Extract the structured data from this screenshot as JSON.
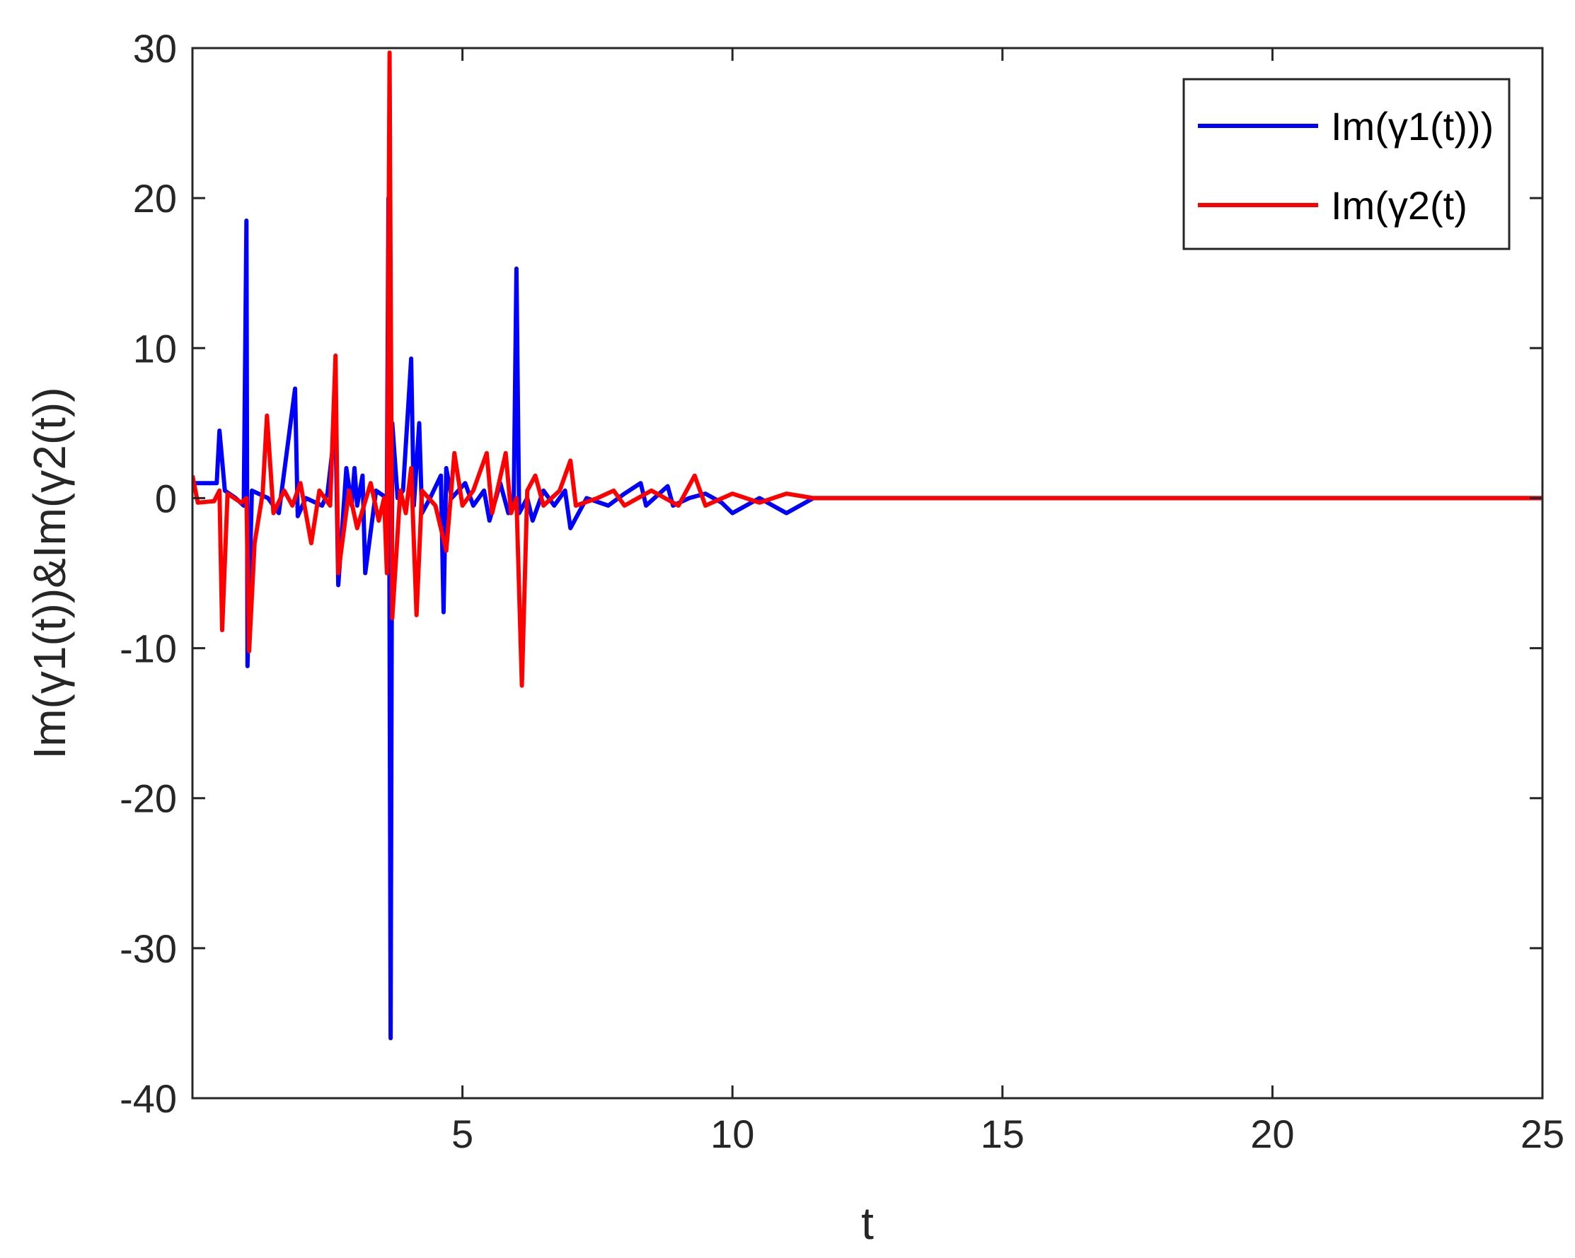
{
  "chart_data": {
    "type": "line",
    "xlabel": "t",
    "ylabel": "Im(γ1(t))&Im(γ2(t))",
    "xlim": [
      0,
      25
    ],
    "ylim": [
      -40,
      30
    ],
    "xticks": [
      5,
      10,
      15,
      20,
      25
    ],
    "yticks": [
      -40,
      -30,
      -20,
      -10,
      0,
      10,
      20,
      30
    ],
    "xtick_labels": [
      "5",
      "10",
      "15",
      "20",
      "25"
    ],
    "ytick_labels": [
      "-40",
      "-30",
      "-20",
      "-10",
      "0",
      "10",
      "20",
      "30"
    ],
    "grid": false,
    "legend_position": "top-right",
    "series": [
      {
        "name": "Im(γ1(t)))",
        "color": "#0000ff",
        "points": [
          [
            0.0,
            1.0
          ],
          [
            0.45,
            1.0
          ],
          [
            0.5,
            4.5
          ],
          [
            0.6,
            0.5
          ],
          [
            0.8,
            0.0
          ],
          [
            0.95,
            -0.5
          ],
          [
            1.0,
            18.5
          ],
          [
            1.02,
            -11.2
          ],
          [
            1.1,
            0.5
          ],
          [
            1.4,
            0.0
          ],
          [
            1.6,
            -1.0
          ],
          [
            1.9,
            7.3
          ],
          [
            1.95,
            -1.2
          ],
          [
            2.1,
            0.0
          ],
          [
            2.4,
            -0.5
          ],
          [
            2.5,
            0.3
          ],
          [
            2.65,
            5.0
          ],
          [
            2.7,
            -5.8
          ],
          [
            2.85,
            2.0
          ],
          [
            2.95,
            -0.5
          ],
          [
            3.0,
            2.0
          ],
          [
            3.05,
            -0.5
          ],
          [
            3.15,
            1.5
          ],
          [
            3.2,
            -5.0
          ],
          [
            3.4,
            0.5
          ],
          [
            3.6,
            0.0
          ],
          [
            3.63,
            20.0
          ],
          [
            3.67,
            -36.0
          ],
          [
            3.7,
            5.0
          ],
          [
            3.8,
            0.0
          ],
          [
            3.9,
            0.5
          ],
          [
            4.05,
            9.3
          ],
          [
            4.1,
            -0.5
          ],
          [
            4.2,
            5.0
          ],
          [
            4.25,
            -1.0
          ],
          [
            4.4,
            0.0
          ],
          [
            4.6,
            1.5
          ],
          [
            4.65,
            -7.6
          ],
          [
            4.7,
            2.0
          ],
          [
            4.8,
            0.0
          ],
          [
            5.05,
            1.0
          ],
          [
            5.2,
            -0.5
          ],
          [
            5.4,
            0.5
          ],
          [
            5.5,
            -1.5
          ],
          [
            5.7,
            1.0
          ],
          [
            5.85,
            -1.0
          ],
          [
            5.95,
            0.0
          ],
          [
            6.0,
            15.3
          ],
          [
            6.05,
            -1.0
          ],
          [
            6.2,
            0.0
          ],
          [
            6.3,
            -1.5
          ],
          [
            6.5,
            0.5
          ],
          [
            6.7,
            -0.5
          ],
          [
            6.9,
            0.5
          ],
          [
            7.0,
            -2.0
          ],
          [
            7.3,
            0.0
          ],
          [
            7.7,
            -0.5
          ],
          [
            8.0,
            0.3
          ],
          [
            8.3,
            1.0
          ],
          [
            8.4,
            -0.5
          ],
          [
            8.8,
            0.8
          ],
          [
            8.9,
            -0.5
          ],
          [
            9.2,
            0.0
          ],
          [
            9.5,
            0.3
          ],
          [
            9.8,
            -0.3
          ],
          [
            10.0,
            -1.0
          ],
          [
            10.5,
            0.0
          ],
          [
            11.0,
            -1.0
          ],
          [
            11.5,
            0.0
          ],
          [
            12.0,
            0.0
          ],
          [
            25.0,
            0.0
          ]
        ]
      },
      {
        "name": "Im(γ2(t)",
        "color": "#ff0000",
        "points": [
          [
            0.0,
            1.5
          ],
          [
            0.1,
            -0.3
          ],
          [
            0.4,
            -0.2
          ],
          [
            0.5,
            0.5
          ],
          [
            0.55,
            -8.8
          ],
          [
            0.65,
            0.3
          ],
          [
            0.9,
            -0.3
          ],
          [
            1.0,
            0.0
          ],
          [
            1.05,
            -10.2
          ],
          [
            1.15,
            -3.0
          ],
          [
            1.3,
            0.3
          ],
          [
            1.38,
            5.5
          ],
          [
            1.5,
            -1.0
          ],
          [
            1.7,
            0.5
          ],
          [
            1.85,
            -0.5
          ],
          [
            2.0,
            1.0
          ],
          [
            2.2,
            -3.0
          ],
          [
            2.35,
            0.5
          ],
          [
            2.55,
            -0.5
          ],
          [
            2.65,
            9.5
          ],
          [
            2.7,
            -5.0
          ],
          [
            2.9,
            0.5
          ],
          [
            3.05,
            -2.0
          ],
          [
            3.3,
            1.0
          ],
          [
            3.45,
            -1.5
          ],
          [
            3.55,
            0.0
          ],
          [
            3.6,
            -5.0
          ],
          [
            3.65,
            29.7
          ],
          [
            3.7,
            -8.0
          ],
          [
            3.85,
            0.5
          ],
          [
            3.95,
            -1.0
          ],
          [
            4.05,
            2.0
          ],
          [
            4.15,
            -7.8
          ],
          [
            4.25,
            0.5
          ],
          [
            4.5,
            -0.5
          ],
          [
            4.7,
            -3.5
          ],
          [
            4.85,
            3.0
          ],
          [
            5.0,
            -0.5
          ],
          [
            5.2,
            0.5
          ],
          [
            5.45,
            3.0
          ],
          [
            5.55,
            -1.0
          ],
          [
            5.8,
            3.0
          ],
          [
            5.9,
            -1.0
          ],
          [
            6.0,
            0.0
          ],
          [
            6.1,
            -12.5
          ],
          [
            6.2,
            0.5
          ],
          [
            6.35,
            1.5
          ],
          [
            6.5,
            -0.5
          ],
          [
            6.8,
            0.5
          ],
          [
            7.0,
            2.5
          ],
          [
            7.1,
            -0.5
          ],
          [
            7.5,
            0.0
          ],
          [
            7.8,
            0.5
          ],
          [
            8.0,
            -0.5
          ],
          [
            8.5,
            0.5
          ],
          [
            9.0,
            -0.5
          ],
          [
            9.3,
            1.5
          ],
          [
            9.5,
            -0.5
          ],
          [
            10.0,
            0.3
          ],
          [
            10.5,
            -0.3
          ],
          [
            11.0,
            0.3
          ],
          [
            11.5,
            0.0
          ],
          [
            25.0,
            0.0
          ]
        ]
      }
    ]
  }
}
